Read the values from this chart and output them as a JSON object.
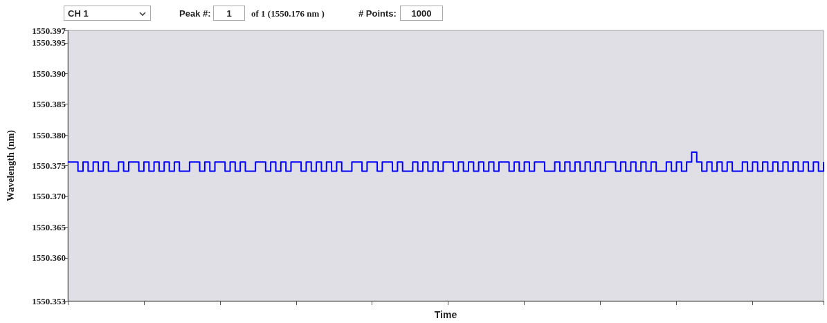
{
  "chart_data": {
    "type": "step",
    "ylabel": "Wavelength (nm)",
    "xlabel": "Time",
    "annotations": [
      "CH 1",
      "Peak #:",
      "1",
      "of 1 (1550.176 nm )",
      "# Points:",
      "1000"
    ],
    "categories": [
      null,
      null,
      null,
      null,
      null,
      null,
      null,
      null,
      null,
      null,
      null,
      null,
      null,
      null,
      null,
      null,
      null,
      null,
      null,
      null,
      null,
      null,
      null,
      null,
      null,
      null,
      null,
      null,
      null,
      null,
      null,
      null,
      null,
      null,
      null,
      null,
      null,
      null,
      null,
      null,
      null,
      null,
      null,
      null,
      null,
      null,
      null,
      null,
      null,
      null,
      null,
      null,
      null,
      null,
      null,
      null,
      null,
      null,
      null,
      null,
      null,
      null,
      null,
      null,
      null,
      null,
      null,
      null,
      null,
      null,
      null,
      null,
      null,
      null,
      null,
      null,
      null,
      null,
      null,
      null,
      null,
      null,
      null,
      null,
      null,
      null,
      null,
      null,
      null,
      null,
      null,
      null,
      null,
      null,
      null,
      null,
      null,
      null,
      null,
      null,
      null,
      null,
      null,
      null,
      null,
      null,
      null,
      null,
      null,
      null,
      null,
      null,
      null,
      null,
      null,
      null,
      null,
      null,
      null,
      null,
      null,
      null,
      null,
      null,
      null,
      null,
      null,
      null,
      null,
      null,
      null,
      null,
      null,
      null,
      null,
      null,
      null,
      null,
      null,
      null,
      null,
      null,
      null,
      null,
      null,
      null,
      null,
      null,
      null,
      null
    ],
    "series": [
      {
        "color": "#0000ff",
        "values": [
          1550.3756,
          1550.3756,
          1550.3741,
          1550.3756,
          1550.3741,
          1550.3756,
          1550.3741,
          1550.3756,
          1550.3741,
          1550.3741,
          1550.3756,
          1550.3741,
          1550.3756,
          1550.3756,
          1550.3741,
          1550.3756,
          1550.3741,
          1550.3756,
          1550.3741,
          1550.3756,
          1550.3741,
          1550.3756,
          1550.3741,
          1550.3741,
          1550.3756,
          1550.3756,
          1550.3741,
          1550.3756,
          1550.3741,
          1550.3756,
          1550.3756,
          1550.3741,
          1550.3756,
          1550.3741,
          1550.3756,
          1550.3741,
          1550.3741,
          1550.3756,
          1550.3756,
          1550.3741,
          1550.3756,
          1550.3741,
          1550.3756,
          1550.3741,
          1550.3756,
          1550.3756,
          1550.3741,
          1550.3756,
          1550.3741,
          1550.3756,
          1550.3741,
          1550.3756,
          1550.3741,
          1550.3756,
          1550.3741,
          1550.3741,
          1550.3756,
          1550.3756,
          1550.3741,
          1550.3756,
          1550.3756,
          1550.3741,
          1550.3756,
          1550.3756,
          1550.3741,
          1550.3756,
          1550.3741,
          1550.3741,
          1550.3756,
          1550.3741,
          1550.3756,
          1550.3741,
          1550.3756,
          1550.3741,
          1550.3756,
          1550.3756,
          1550.3741,
          1550.3756,
          1550.3741,
          1550.3756,
          1550.3741,
          1550.3756,
          1550.3741,
          1550.3756,
          1550.3741,
          1550.3756,
          1550.3756,
          1550.3741,
          1550.3756,
          1550.3741,
          1550.3756,
          1550.3741,
          1550.3756,
          1550.3756,
          1550.3741,
          1550.3741,
          1550.3756,
          1550.3741,
          1550.3756,
          1550.3741,
          1550.3756,
          1550.3741,
          1550.3756,
          1550.3741,
          1550.3756,
          1550.3741,
          1550.3756,
          1550.3756,
          1550.3741,
          1550.3756,
          1550.3741,
          1550.3756,
          1550.3741,
          1550.3756,
          1550.3741,
          1550.3756,
          1550.3741,
          1550.3741,
          1550.3756,
          1550.3741,
          1550.3756,
          1550.3741,
          1550.3756,
          1550.3772,
          1550.3756,
          1550.3741,
          1550.3756,
          1550.3741,
          1550.3756,
          1550.3741,
          1550.3756,
          1550.3741,
          1550.3741,
          1550.3756,
          1550.3741,
          1550.3756,
          1550.3741,
          1550.3756,
          1550.3741,
          1550.3756,
          1550.3741,
          1550.3756,
          1550.3741,
          1550.3756,
          1550.3741,
          1550.3756,
          1550.3741,
          1550.3756,
          1550.3741,
          1550.3756
        ]
      }
    ],
    "ylim": [
      1550.353,
      1550.397
    ],
    "yticks": [
      1550.353,
      {
        "value": 1550.36,
        "label": "1550.360"
      },
      1550.365,
      {
        "value": 1550.37,
        "label": "1550.370"
      },
      1550.375,
      {
        "value": 1550.38,
        "label": "1550.380"
      },
      1550.385,
      {
        "value": 1550.39,
        "label": "1550.390"
      },
      1550.395,
      1550.397
    ],
    "grid": false,
    "line_style": "solid",
    "tick_labels": "y"
  }
}
